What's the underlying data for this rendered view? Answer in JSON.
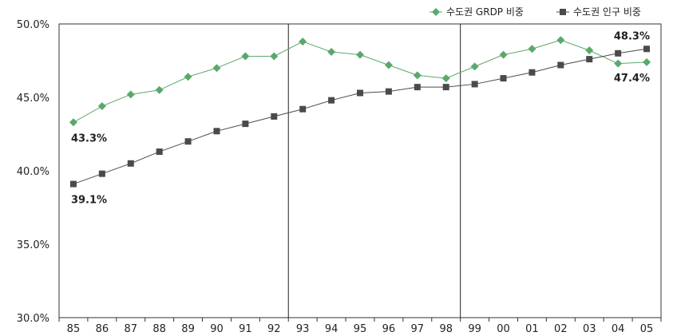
{
  "chart_data": {
    "type": "line",
    "title": "",
    "xlabel": "",
    "ylabel": "",
    "categories": [
      "85",
      "86",
      "87",
      "88",
      "89",
      "90",
      "91",
      "92",
      "93",
      "94",
      "95",
      "96",
      "97",
      "98",
      "99",
      "00",
      "01",
      "02",
      "03",
      "04",
      "05"
    ],
    "ylim": [
      30.0,
      50.0
    ],
    "yticks": [
      "50.0%",
      "45.0%",
      "40.0%",
      "35.0%",
      "30.0%"
    ],
    "ytick_values": [
      50,
      45,
      40,
      35,
      30
    ],
    "grid": false,
    "legend_position": "top-right",
    "reference_lines_at": [
      "93",
      "99"
    ],
    "series": [
      {
        "name": "수도권 GRDP 비중",
        "color": "#5aa86c",
        "marker": "diamond",
        "values": [
          43.3,
          44.4,
          45.2,
          45.5,
          46.4,
          47.0,
          47.8,
          47.8,
          48.8,
          48.1,
          47.9,
          47.2,
          46.5,
          46.3,
          47.1,
          47.9,
          48.3,
          48.9,
          48.2,
          47.3,
          47.4
        ]
      },
      {
        "name": "수도권 인구 비중",
        "color": "#4a4a4a",
        "marker": "square",
        "values": [
          39.1,
          39.8,
          40.5,
          41.3,
          42.0,
          42.7,
          43.2,
          43.7,
          44.2,
          44.8,
          45.3,
          45.4,
          45.7,
          45.7,
          45.9,
          46.3,
          46.7,
          47.2,
          47.6,
          48.0,
          48.3
        ]
      }
    ],
    "annotations": [
      {
        "text": "43.3%",
        "series": 0,
        "index": 0,
        "position": "below"
      },
      {
        "text": "39.1%",
        "series": 1,
        "index": 0,
        "position": "below"
      },
      {
        "text": "48.3%",
        "series": 1,
        "index": 20,
        "position": "above"
      },
      {
        "text": "47.4%",
        "series": 0,
        "index": 20,
        "position": "below"
      }
    ]
  }
}
